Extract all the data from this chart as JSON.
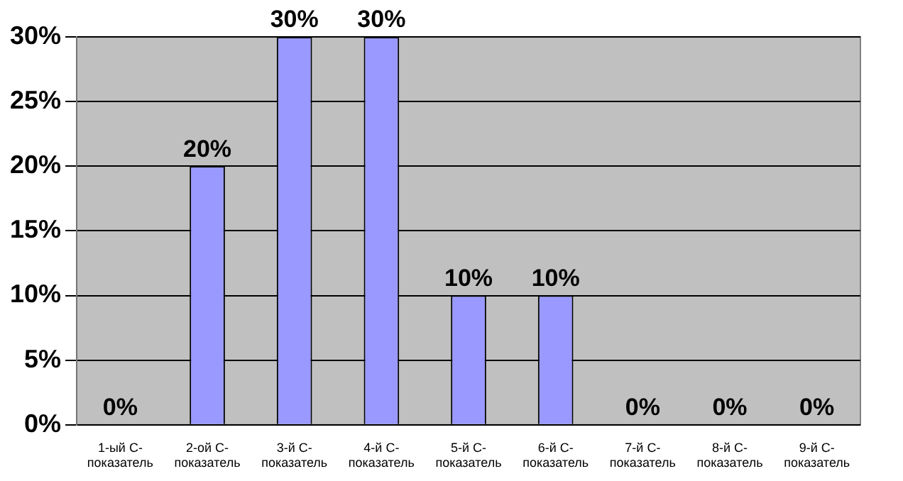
{
  "chart_data": {
    "type": "bar",
    "categories": [
      "1-ый C-показатель",
      "2-ой C-показатель",
      "3-й C-показатель",
      "4-й C-показатель",
      "5-й C-показатель",
      "6-й C-показатель",
      "7-й C-показатель",
      "8-й C-показатель",
      "9-й C-показатель"
    ],
    "values": [
      0,
      20,
      30,
      30,
      10,
      10,
      0,
      0,
      0
    ],
    "value_labels": [
      "0%",
      "20%",
      "30%",
      "30%",
      "10%",
      "10%",
      "0%",
      "0%",
      "0%"
    ],
    "color": "#9999ff",
    "ylim": [
      0,
      30
    ],
    "yticks": [
      {
        "value": 0,
        "label": "0%"
      },
      {
        "value": 5,
        "label": "5%"
      },
      {
        "value": 10,
        "label": "10%"
      },
      {
        "value": 15,
        "label": "15%"
      },
      {
        "value": 20,
        "label": "20%"
      },
      {
        "value": 25,
        "label": "25%"
      },
      {
        "value": 30,
        "label": "30%"
      }
    ],
    "grid": "y",
    "legend": false
  }
}
